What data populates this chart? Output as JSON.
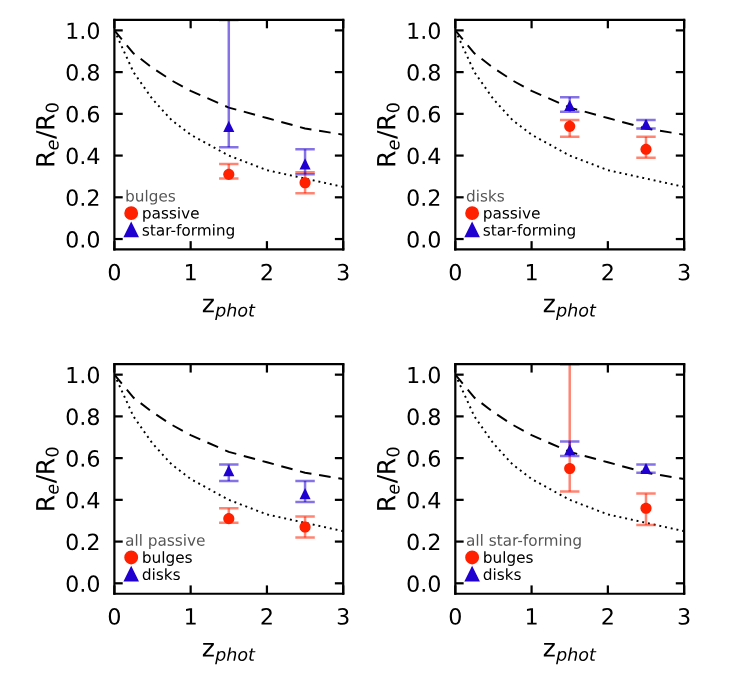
{
  "chart_data": [
    {
      "type": "scatter",
      "xlabel": "z$_{phot}$",
      "ylabel": "R$_{e}$/R$_{0}$",
      "legend_title": "bulges",
      "legend": "bottom left",
      "xlim": [
        0,
        3
      ],
      "ylim": [
        -0.05,
        1.05
      ],
      "xticks": [
        0,
        1,
        2,
        3
      ],
      "yticks": [
        {
          "value": 0,
          "label": "0.0"
        },
        {
          "value": 0.2,
          "label": "0.2"
        },
        {
          "value": 0.4,
          "label": "0.4"
        },
        {
          "value": 0.6,
          "label": "0.6"
        },
        {
          "value": 0.8,
          "label": "0.8"
        },
        {
          "value": 1,
          "label": "1.0"
        }
      ],
      "series": [
        {
          "type": "line",
          "line_style": "dashed",
          "color": "#000000",
          "marker": "none",
          "x": [
            0,
            0.25,
            0.5,
            0.75,
            1,
            1.5,
            2,
            2.5,
            3
          ],
          "values": [
            1,
            0.89,
            0.82,
            0.76,
            0.71,
            0.63,
            0.58,
            0.53,
            0.5
          ]
        },
        {
          "type": "line",
          "line_style": "dotted",
          "color": "#000000",
          "marker": "none",
          "x": [
            0,
            0.25,
            0.5,
            0.75,
            1,
            1.5,
            2,
            2.5,
            3
          ],
          "values": [
            1,
            0.8,
            0.67,
            0.57,
            0.5,
            0.4,
            0.33,
            0.29,
            0.25
          ]
        },
        {
          "name": "passive",
          "marker": "circle",
          "color": "#ff2000",
          "x": [
            1.5,
            2.5
          ],
          "values": [
            0.31,
            0.27
          ],
          "errors": [
            [
              0.29,
              0.36
            ],
            [
              0.22,
              0.32
            ]
          ]
        },
        {
          "name": "star-forming",
          "marker": "triangle",
          "color": "#2000d0",
          "x": [
            1.5,
            2.5
          ],
          "values": [
            0.54,
            0.36
          ],
          "errors": [
            [
              0.44,
              1.05
            ],
            [
              0.31,
              0.43
            ]
          ]
        }
      ]
    },
    {
      "type": "scatter",
      "xlabel": "z$_{phot}$",
      "ylabel": "R$_{e}$/R$_{0}$",
      "legend_title": "disks",
      "legend": "bottom left",
      "xlim": [
        0,
        3
      ],
      "ylim": [
        -0.05,
        1.05
      ],
      "xticks": [
        0,
        1,
        2,
        3
      ],
      "yticks": [
        {
          "value": 0,
          "label": "0.0"
        },
        {
          "value": 0.2,
          "label": "0.2"
        },
        {
          "value": 0.4,
          "label": "0.4"
        },
        {
          "value": 0.6,
          "label": "0.6"
        },
        {
          "value": 0.8,
          "label": "0.8"
        },
        {
          "value": 1,
          "label": "1.0"
        }
      ],
      "series": [
        {
          "type": "line",
          "line_style": "dashed",
          "color": "#000000",
          "marker": "none",
          "x": [
            0,
            0.25,
            0.5,
            0.75,
            1,
            1.5,
            2,
            2.5,
            3
          ],
          "values": [
            1,
            0.89,
            0.82,
            0.76,
            0.71,
            0.63,
            0.58,
            0.53,
            0.5
          ]
        },
        {
          "type": "line",
          "line_style": "dotted",
          "color": "#000000",
          "marker": "none",
          "x": [
            0,
            0.25,
            0.5,
            0.75,
            1,
            1.5,
            2,
            2.5,
            3
          ],
          "values": [
            1,
            0.8,
            0.67,
            0.57,
            0.5,
            0.4,
            0.33,
            0.29,
            0.25
          ]
        },
        {
          "name": "passive",
          "marker": "circle",
          "color": "#ff2000",
          "x": [
            1.5,
            2.5
          ],
          "values": [
            0.54,
            0.43
          ],
          "errors": [
            [
              0.49,
              0.57
            ],
            [
              0.39,
              0.49
            ]
          ]
        },
        {
          "name": "star-forming",
          "marker": "triangle",
          "color": "#2000d0",
          "x": [
            1.5,
            2.5
          ],
          "values": [
            0.64,
            0.55
          ],
          "errors": [
            [
              0.61,
              0.68
            ],
            [
              0.53,
              0.57
            ]
          ]
        }
      ]
    },
    {
      "type": "scatter",
      "xlabel": "z$_{phot}$",
      "ylabel": "R$_{e}$/R$_{0}$",
      "legend_title": "all passive",
      "legend": "bottom left",
      "xlim": [
        0,
        3
      ],
      "ylim": [
        -0.05,
        1.05
      ],
      "xticks": [
        0,
        1,
        2,
        3
      ],
      "yticks": [
        {
          "value": 0,
          "label": "0.0"
        },
        {
          "value": 0.2,
          "label": "0.2"
        },
        {
          "value": 0.4,
          "label": "0.4"
        },
        {
          "value": 0.6,
          "label": "0.6"
        },
        {
          "value": 0.8,
          "label": "0.8"
        },
        {
          "value": 1,
          "label": "1.0"
        }
      ],
      "series": [
        {
          "type": "line",
          "line_style": "dashed",
          "color": "#000000",
          "marker": "none",
          "x": [
            0,
            0.25,
            0.5,
            0.75,
            1,
            1.5,
            2,
            2.5,
            3
          ],
          "values": [
            1,
            0.89,
            0.82,
            0.76,
            0.71,
            0.63,
            0.58,
            0.53,
            0.5
          ]
        },
        {
          "type": "line",
          "line_style": "dotted",
          "color": "#000000",
          "marker": "none",
          "x": [
            0,
            0.25,
            0.5,
            0.75,
            1,
            1.5,
            2,
            2.5,
            3
          ],
          "values": [
            1,
            0.8,
            0.67,
            0.57,
            0.5,
            0.4,
            0.33,
            0.29,
            0.25
          ]
        },
        {
          "name": "bulges",
          "marker": "circle",
          "color": "#ff2000",
          "x": [
            1.5,
            2.5
          ],
          "values": [
            0.31,
            0.27
          ],
          "errors": [
            [
              0.29,
              0.36
            ],
            [
              0.22,
              0.32
            ]
          ]
        },
        {
          "name": "disks",
          "marker": "triangle",
          "color": "#2000d0",
          "x": [
            1.5,
            2.5
          ],
          "values": [
            0.54,
            0.43
          ],
          "errors": [
            [
              0.49,
              0.57
            ],
            [
              0.39,
              0.49
            ]
          ]
        }
      ]
    },
    {
      "type": "scatter",
      "xlabel": "z$_{phot}$",
      "ylabel": "R$_{e}$/R$_{0}$",
      "legend_title": "all star-forming",
      "legend": "bottom left",
      "xlim": [
        0,
        3
      ],
      "ylim": [
        -0.05,
        1.05
      ],
      "xticks": [
        0,
        1,
        2,
        3
      ],
      "yticks": [
        {
          "value": 0,
          "label": "0.0"
        },
        {
          "value": 0.2,
          "label": "0.2"
        },
        {
          "value": 0.4,
          "label": "0.4"
        },
        {
          "value": 0.6,
          "label": "0.6"
        },
        {
          "value": 0.8,
          "label": "0.8"
        },
        {
          "value": 1,
          "label": "1.0"
        }
      ],
      "series": [
        {
          "type": "line",
          "line_style": "dashed",
          "color": "#000000",
          "marker": "none",
          "x": [
            0,
            0.25,
            0.5,
            0.75,
            1,
            1.5,
            2,
            2.5,
            3
          ],
          "values": [
            1,
            0.89,
            0.82,
            0.76,
            0.71,
            0.63,
            0.58,
            0.53,
            0.5
          ]
        },
        {
          "type": "line",
          "line_style": "dotted",
          "color": "#000000",
          "marker": "none",
          "x": [
            0,
            0.25,
            0.5,
            0.75,
            1,
            1.5,
            2,
            2.5,
            3
          ],
          "values": [
            1,
            0.8,
            0.67,
            0.57,
            0.5,
            0.4,
            0.33,
            0.29,
            0.25
          ]
        },
        {
          "name": "bulges",
          "marker": "circle",
          "color": "#ff2000",
          "x": [
            1.5,
            2.5
          ],
          "values": [
            0.55,
            0.36
          ],
          "errors": [
            [
              0.44,
              1.05
            ],
            [
              0.28,
              0.43
            ]
          ]
        },
        {
          "name": "disks",
          "marker": "triangle",
          "color": "#2000d0",
          "x": [
            1.5,
            2.5
          ],
          "values": [
            0.64,
            0.55
          ],
          "errors": [
            [
              0.61,
              0.68
            ],
            [
              0.53,
              0.57
            ]
          ]
        }
      ]
    }
  ]
}
